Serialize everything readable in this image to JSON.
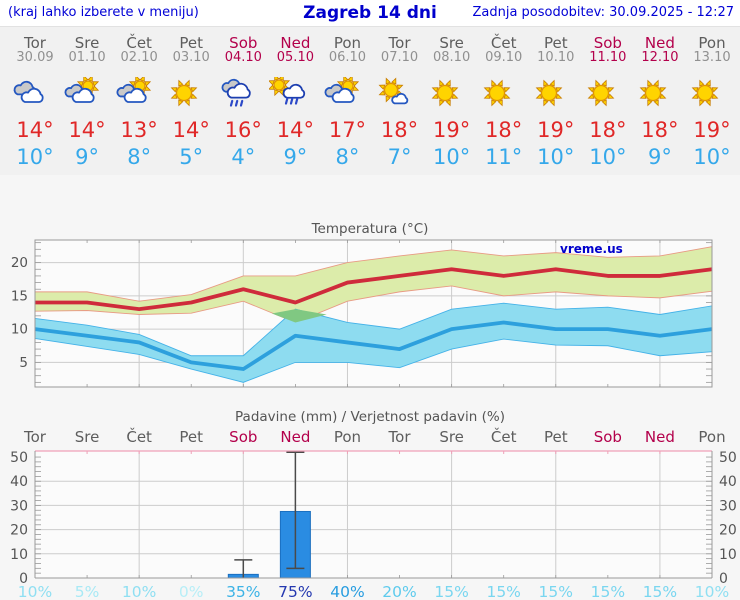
{
  "header": {
    "left": "(kraj lahko izberete v meniju)",
    "title": "Zagreb 14 dni",
    "updated": "Zadnja posodobitev: 30.09.2025 - 12:27"
  },
  "watermark": "vreme.us",
  "colors": {
    "weekend": "#b3004b",
    "weekday": "#5d5d5d",
    "tmax": "#e02828",
    "tmin": "#35a8ea",
    "header_blue": "#0000cc"
  },
  "days": [
    {
      "name": "Tor",
      "date": "30.09",
      "weekend": false,
      "icon": "cloudy",
      "tmax": "14°",
      "tmin": "10°",
      "pop": "10%",
      "pop_color": "#8fdff2"
    },
    {
      "name": "Sre",
      "date": "01.10",
      "weekend": false,
      "icon": "partly",
      "tmax": "14°",
      "tmin": "9°",
      "pop": "5%",
      "pop_color": "#a8e9f5"
    },
    {
      "name": "Čet",
      "date": "02.10",
      "weekend": false,
      "icon": "partly",
      "tmax": "13°",
      "tmin": "8°",
      "pop": "10%",
      "pop_color": "#8fdff2"
    },
    {
      "name": "Pet",
      "date": "03.10",
      "weekend": false,
      "icon": "sunny",
      "tmax": "14°",
      "tmin": "5°",
      "pop": "0%",
      "pop_color": "#b7eef7"
    },
    {
      "name": "Sob",
      "date": "04.10",
      "weekend": true,
      "icon": "rain",
      "tmax": "16°",
      "tmin": "4°",
      "pop": "35%",
      "pop_color": "#3cb3e6"
    },
    {
      "name": "Ned",
      "date": "05.10",
      "weekend": true,
      "icon": "sunrain",
      "tmax": "14°",
      "tmin": "9°",
      "pop": "75%",
      "pop_color": "#2438b0"
    },
    {
      "name": "Pon",
      "date": "06.10",
      "weekend": false,
      "icon": "partly",
      "tmax": "17°",
      "tmin": "8°",
      "pop": "40%",
      "pop_color": "#289de0"
    },
    {
      "name": "Tor",
      "date": "07.10",
      "weekend": false,
      "icon": "mostlysunny",
      "tmax": "18°",
      "tmin": "7°",
      "pop": "20%",
      "pop_color": "#5ecbed"
    },
    {
      "name": "Sre",
      "date": "08.10",
      "weekend": false,
      "icon": "sunny",
      "tmax": "19°",
      "tmin": "10°",
      "pop": "15%",
      "pop_color": "#79d6f0"
    },
    {
      "name": "Čet",
      "date": "09.10",
      "weekend": false,
      "icon": "sunny",
      "tmax": "18°",
      "tmin": "11°",
      "pop": "15%",
      "pop_color": "#79d6f0"
    },
    {
      "name": "Pet",
      "date": "10.10",
      "weekend": false,
      "icon": "sunny",
      "tmax": "19°",
      "tmin": "10°",
      "pop": "15%",
      "pop_color": "#79d6f0"
    },
    {
      "name": "Sob",
      "date": "11.10",
      "weekend": true,
      "icon": "sunny",
      "tmax": "18°",
      "tmin": "10°",
      "pop": "15%",
      "pop_color": "#79d6f0"
    },
    {
      "name": "Ned",
      "date": "12.10",
      "weekend": true,
      "icon": "sunny",
      "tmax": "18°",
      "tmin": "9°",
      "pop": "15%",
      "pop_color": "#79d6f0"
    },
    {
      "name": "Pon",
      "date": "13.10",
      "weekend": false,
      "icon": "sunny",
      "tmax": "19°",
      "tmin": "10°",
      "pop": "10%",
      "pop_color": "#8fdff2"
    }
  ],
  "chart_data": [
    {
      "type": "line",
      "title": "Temperatura (°C)",
      "categories": [
        "30.09",
        "01.10",
        "02.10",
        "03.10",
        "04.10",
        "05.10",
        "06.10",
        "07.10",
        "08.10",
        "09.10",
        "10.10",
        "11.10",
        "12.10",
        "13.10"
      ],
      "ylim": [
        1.3,
        23.4
      ],
      "yticks": [
        5,
        10,
        15,
        20
      ],
      "grid_vertical_days": [
        0,
        2,
        4,
        6,
        8,
        10,
        12
      ],
      "series": [
        {
          "name": "max temperature",
          "color": "#cf2b3b",
          "values": [
            14,
            14,
            13,
            14,
            16,
            14,
            17,
            18,
            19,
            18,
            19,
            18,
            18,
            19
          ],
          "band_hi": [
            15.6,
            15.6,
            14.2,
            15.2,
            18,
            18,
            20,
            21,
            21.9,
            21,
            21.5,
            20.8,
            21,
            22.4
          ],
          "band_lo": [
            12.7,
            12.8,
            12.2,
            12.4,
            14.2,
            11,
            14.2,
            15.6,
            16.5,
            15,
            15.6,
            15,
            14.7,
            15.7
          ],
          "band_fill": "#dcecaa",
          "band_edge": "#e89b84"
        },
        {
          "name": "min temperature",
          "color": "#2da0dd",
          "values": [
            10,
            9,
            8,
            5,
            4,
            9,
            8,
            7,
            10,
            11,
            10,
            10,
            9,
            10
          ],
          "band_hi": [
            11.6,
            10.6,
            9.2,
            6,
            6,
            13,
            11,
            10,
            13,
            13.9,
            13,
            13.3,
            12.2,
            13.5
          ],
          "band_lo": [
            8.6,
            7.4,
            6.2,
            4,
            2,
            5,
            5,
            4.2,
            7,
            8.5,
            7.6,
            7.5,
            6,
            6.6
          ],
          "band_fill": "#8edcf0",
          "band_edge": "#44b2e8"
        }
      ],
      "overlap_polygon": [
        [
          4.55,
          12.35
        ],
        [
          5,
          13
        ],
        [
          5.6,
          12.2
        ],
        [
          5,
          11
        ]
      ],
      "overlap_color": "#80c882",
      "legend": "none",
      "grid": true
    },
    {
      "type": "bar",
      "title": "Padavine (mm) / Verjetnost padavin (%)",
      "categories": [
        "Tor",
        "Sre",
        "Čet",
        "Pet",
        "Sob",
        "Ned",
        "Pon",
        "Tor",
        "Sre",
        "Čet",
        "Pet",
        "Sob",
        "Ned",
        "Pon"
      ],
      "ylim": [
        0,
        52.5
      ],
      "yticks": [
        0,
        10,
        20,
        30,
        40,
        50
      ],
      "grid_vertical_days": [
        0,
        2,
        4,
        6,
        8,
        10,
        12
      ],
      "values": [
        0,
        0,
        0,
        0,
        1.5,
        27.5,
        0,
        0,
        0,
        0,
        0,
        0,
        0,
        0
      ],
      "whiskers": [
        null,
        null,
        null,
        null,
        [
          0,
          7.5
        ],
        [
          4,
          52
        ],
        null,
        null,
        null,
        null,
        null,
        null,
        null,
        null
      ],
      "probabilities": [
        "10%",
        "5%",
        "10%",
        "0%",
        "35%",
        "75%",
        "40%",
        "20%",
        "15%",
        "15%",
        "15%",
        "15%",
        "15%",
        "10%"
      ],
      "bar_color": "#2a8ce2",
      "bar_edge": "#1a6fc0",
      "whisker_color": "#4a4a4a",
      "top_frame_color": "#f0a0b8",
      "grid": true
    }
  ]
}
